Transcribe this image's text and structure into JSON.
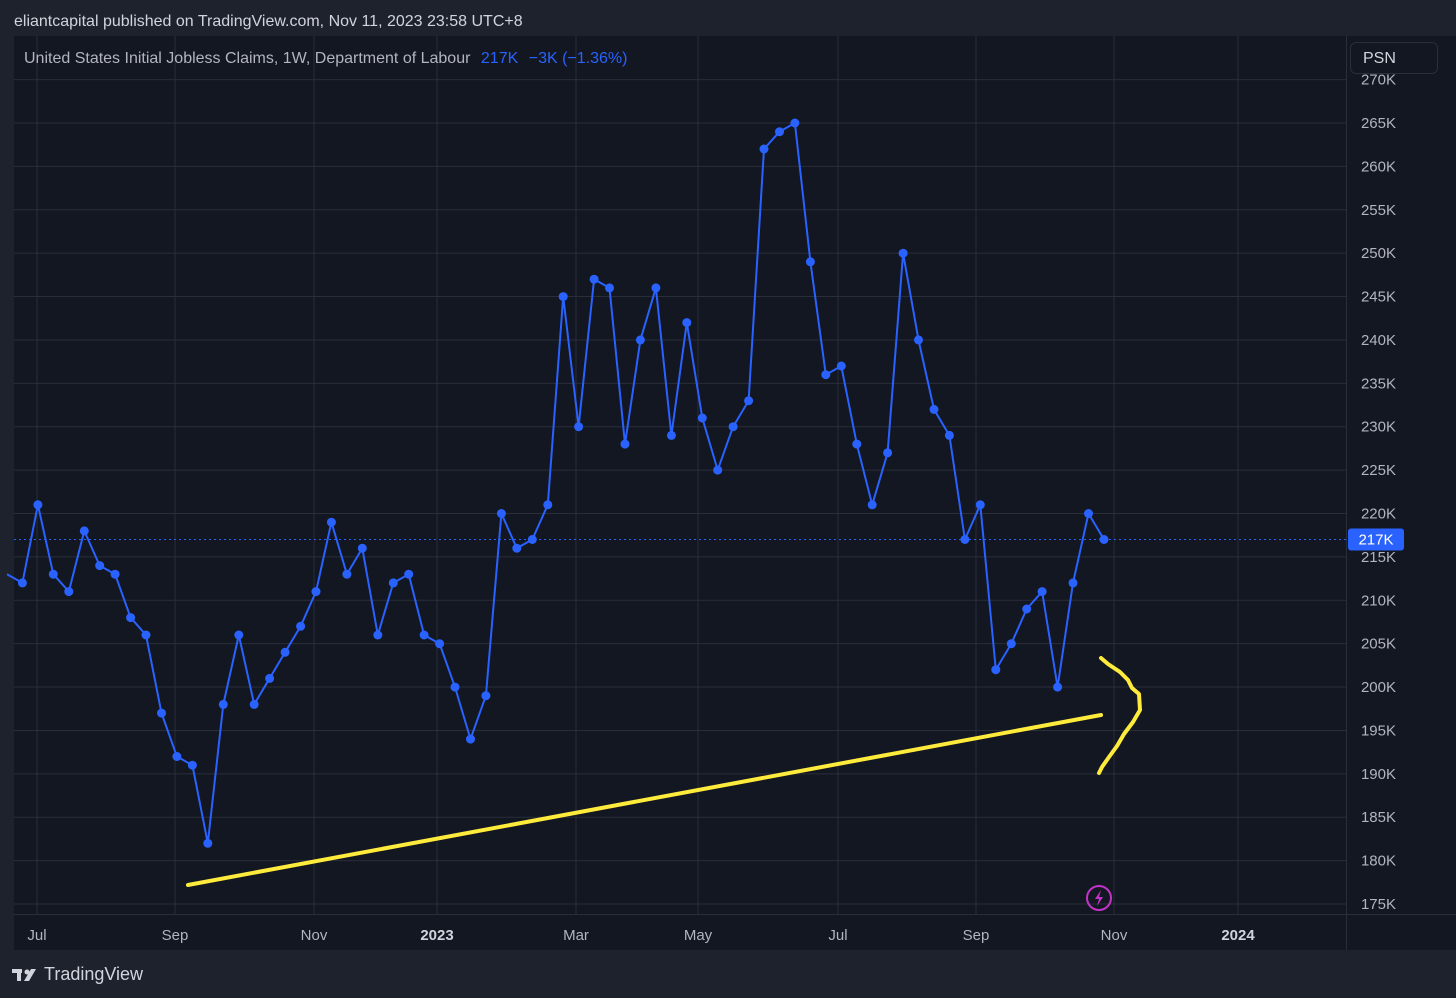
{
  "header": {
    "publisher_line": "eliantcapital published on TradingView.com, Nov 11, 2023 23:58 UTC+8"
  },
  "legend": {
    "title": "United States Initial Jobless Claims, 1W, Department of Labour",
    "value": "217K",
    "change": "−3K (−1.36%)"
  },
  "psn_label": "PSN",
  "last_price_label": "217K",
  "footer": {
    "brand": "TradingView"
  },
  "colors": {
    "series": "#2962ff",
    "annotation": "#ffeb3b",
    "background": "#131722",
    "grid": "#2a2e39"
  },
  "icons": {
    "lightning": "lightning-icon"
  },
  "chart_data": {
    "type": "line",
    "title": "United States Initial Jobless Claims, 1W, Department of Labour",
    "ylim": [
      173000,
      271000
    ],
    "y_tick_labels": [
      "175K",
      "180K",
      "185K",
      "190K",
      "195K",
      "200K",
      "205K",
      "210K",
      "215K",
      "220K",
      "225K",
      "230K",
      "235K",
      "240K",
      "245K",
      "250K",
      "255K",
      "260K",
      "265K",
      "270K"
    ],
    "x_tick_labels": [
      {
        "label": "Jul",
        "bold": false
      },
      {
        "label": "Sep",
        "bold": false
      },
      {
        "label": "Nov",
        "bold": false
      },
      {
        "label": "2023",
        "bold": true
      },
      {
        "label": "Mar",
        "bold": false
      },
      {
        "label": "May",
        "bold": false
      },
      {
        "label": "Jul",
        "bold": false
      },
      {
        "label": "Sep",
        "bold": false
      },
      {
        "label": "Nov",
        "bold": false
      },
      {
        "label": "2024",
        "bold": true
      }
    ],
    "grid": true,
    "series": [
      {
        "values": [
          213000,
          212000,
          221000,
          213000,
          211000,
          218000,
          214000,
          213000,
          208000,
          206000,
          197000,
          192000,
          191000,
          182000,
          198000,
          206000,
          198000,
          201000,
          204000,
          207000,
          211000,
          219000,
          213000,
          216000,
          206000,
          212000,
          213000,
          206000,
          205000,
          200000,
          194000,
          199000,
          220000,
          216000,
          217000,
          221000,
          245000,
          230000,
          247000,
          246000,
          228000,
          240000,
          246000,
          229000,
          242000,
          231000,
          225000,
          230000,
          233000,
          262000,
          264000,
          265000,
          249000,
          236000,
          237000,
          228000,
          221000,
          227000,
          250000,
          240000,
          232000,
          229000,
          217000,
          221000,
          202000,
          205000,
          209000,
          211000,
          200000,
          212000,
          220000,
          217000
        ]
      }
    ],
    "last_value": 217000
  }
}
